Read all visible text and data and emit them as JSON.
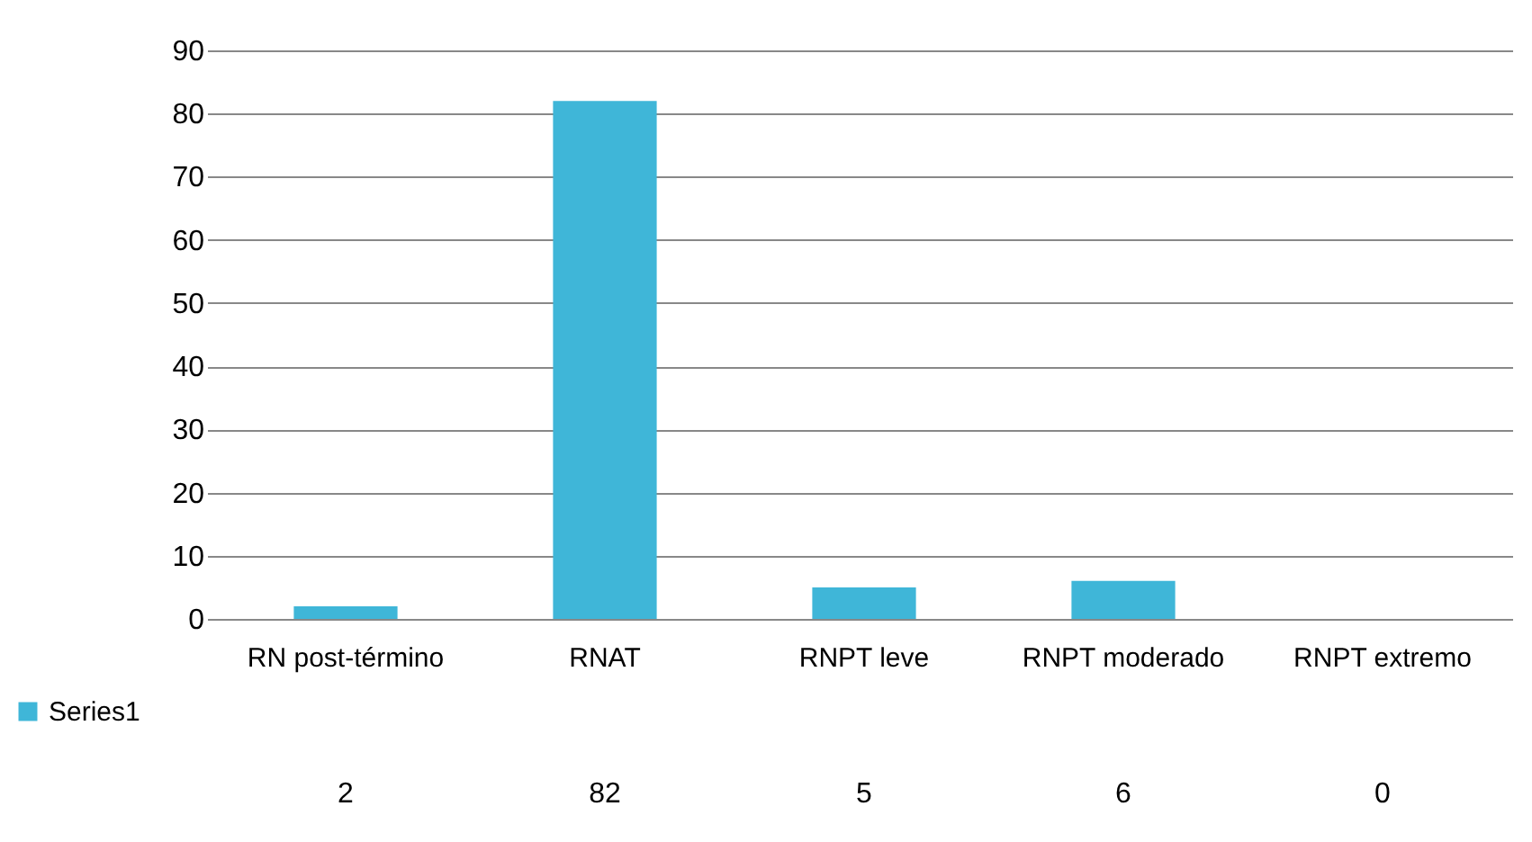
{
  "chart_data": {
    "type": "bar",
    "categories": [
      "RN post-término",
      "RNAT",
      "RNPT leve",
      "RNPT moderado",
      "RNPT extremo"
    ],
    "series": [
      {
        "name": "Series1",
        "color": "#3fb6d8",
        "values": [
          2,
          82,
          5,
          6,
          0
        ]
      }
    ],
    "ylim": [
      0,
      90
    ],
    "yticks": [
      0,
      10,
      20,
      30,
      40,
      50,
      60,
      70,
      80,
      90
    ],
    "grid": "y",
    "legend": "bottom left",
    "data_labels": true
  }
}
